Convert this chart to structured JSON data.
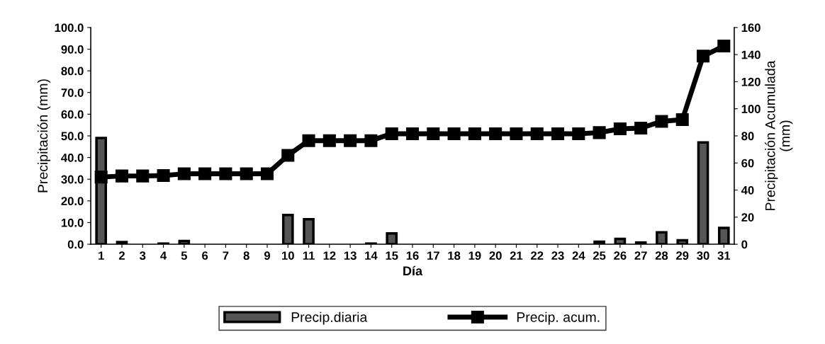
{
  "chart_data": {
    "type": "bar",
    "xlabel": "Día",
    "ylabel": "Precipitación (mm)",
    "y2label": "Precipitación Acumulada\n(mm)",
    "categories": [
      "1",
      "2",
      "3",
      "4",
      "5",
      "6",
      "7",
      "8",
      "9",
      "10",
      "11",
      "12",
      "13",
      "14",
      "15",
      "16",
      "17",
      "18",
      "19",
      "20",
      "21",
      "22",
      "23",
      "24",
      "25",
      "26",
      "27",
      "28",
      "29",
      "30",
      "31"
    ],
    "series": [
      {
        "name": "Precip.diaria",
        "color": "#555555",
        "values": [
          49,
          1,
          0,
          0.3,
          1.5,
          0,
          0,
          0,
          0,
          13.5,
          11.5,
          0,
          0,
          0.3,
          5,
          0,
          0,
          0,
          0,
          0,
          0,
          0,
          0,
          0,
          1.2,
          2.5,
          0.8,
          5.5,
          1.8,
          47,
          7.5
        ]
      },
      {
        "name": "Precip. acum.",
        "type": "line",
        "axis": "y2",
        "color": "#000000",
        "marker": "square",
        "values": [
          49.6,
          50.4,
          50.4,
          50.7,
          52,
          52,
          52,
          52,
          52,
          65.6,
          76.5,
          76.5,
          76.5,
          76.5,
          81.6,
          81.6,
          81.6,
          81.6,
          81.6,
          81.6,
          81.6,
          81.6,
          81.6,
          81.6,
          82.4,
          85.2,
          85.7,
          90.7,
          92,
          138.9,
          146.3
        ]
      }
    ],
    "ylim": [
      0,
      100
    ],
    "yticks": [
      {
        "value": 0,
        "label": "0.0"
      },
      {
        "value": 10,
        "label": "10.0"
      },
      {
        "value": 20,
        "label": "20.0"
      },
      {
        "value": 30,
        "label": "30.0"
      },
      {
        "value": 40,
        "label": "40.0"
      },
      {
        "value": 50,
        "label": "50.0"
      },
      {
        "value": 60,
        "label": "60.0"
      },
      {
        "value": 70,
        "label": "70.0"
      },
      {
        "value": 80,
        "label": "80.0"
      },
      {
        "value": 90,
        "label": "90.0"
      },
      {
        "value": 100,
        "label": "100.0"
      }
    ],
    "y2lim": [
      0,
      160
    ],
    "y2ticks": [
      0,
      20,
      40,
      60,
      80,
      100,
      120,
      140,
      160
    ],
    "grid": false,
    "legend": "bottom"
  }
}
